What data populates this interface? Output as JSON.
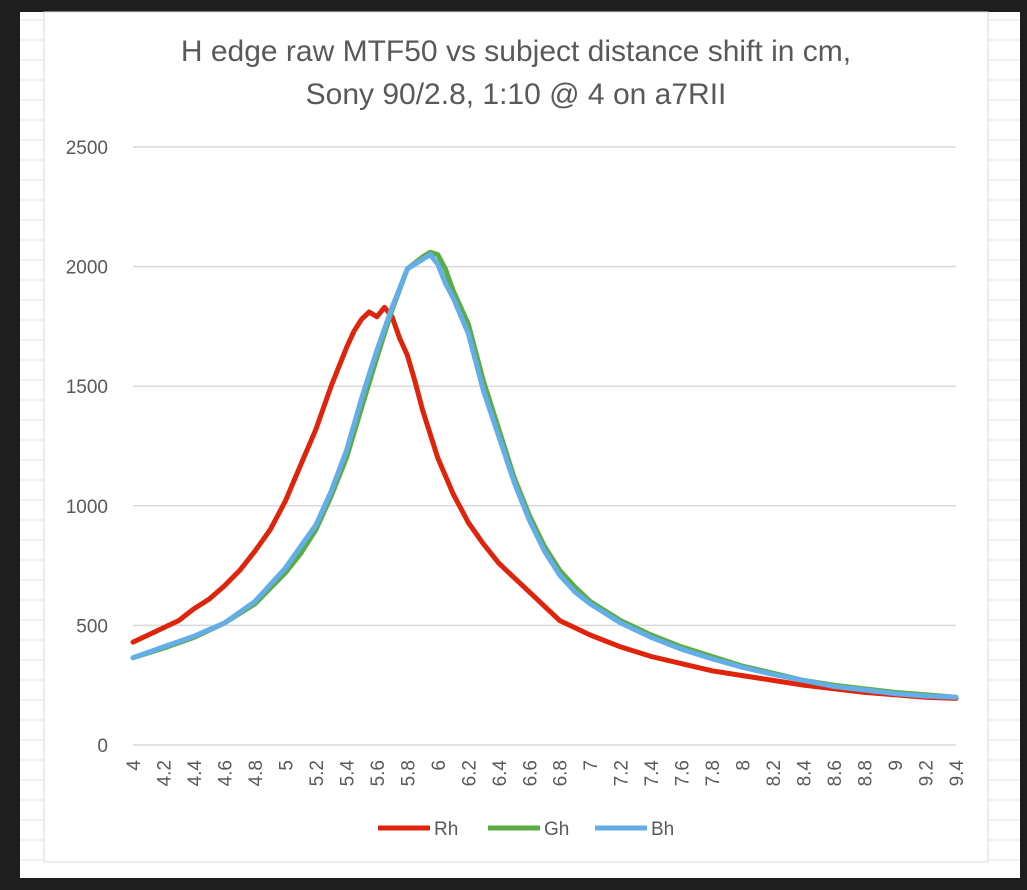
{
  "chart_data": {
    "type": "line",
    "title_line1": "H edge raw MTF50 vs subject distance shift in cm,",
    "title_line2": "Sony 90/2.8, 1:10 @ 4 on a7RII",
    "xlabel": "",
    "ylabel": "",
    "ylim": [
      0,
      2500
    ],
    "yticks": [
      0,
      500,
      1000,
      1500,
      2000,
      2500
    ],
    "xlim": [
      4,
      9.4
    ],
    "xticks": [
      "4",
      "4.2",
      "4.4",
      "4.6",
      "4.8",
      "5",
      "5.2",
      "5.4",
      "5.6",
      "5.8",
      "6",
      "6.2",
      "6.4",
      "6.6",
      "6.8",
      "7",
      "7.2",
      "7.4",
      "7.6",
      "7.8",
      "8",
      "8.2",
      "8.4",
      "8.6",
      "8.8",
      "9",
      "9.2",
      "9.4"
    ],
    "grid": "horizontal",
    "legend_position": "bottom",
    "series": [
      {
        "name": "Rh",
        "color": "#e0240b",
        "x": [
          4.0,
          4.1,
          4.2,
          4.3,
          4.4,
          4.5,
          4.6,
          4.7,
          4.8,
          4.9,
          5.0,
          5.1,
          5.2,
          5.3,
          5.4,
          5.45,
          5.5,
          5.55,
          5.6,
          5.65,
          5.7,
          5.75,
          5.8,
          5.85,
          5.9,
          6.0,
          6.1,
          6.2,
          6.3,
          6.4,
          6.5,
          6.6,
          6.7,
          6.8,
          6.9,
          7.0,
          7.2,
          7.4,
          7.6,
          7.8,
          8.0,
          8.2,
          8.4,
          8.6,
          8.8,
          9.0,
          9.2,
          9.4
        ],
        "y": [
          430,
          460,
          490,
          520,
          570,
          610,
          665,
          730,
          810,
          900,
          1020,
          1170,
          1320,
          1500,
          1660,
          1730,
          1780,
          1810,
          1790,
          1830,
          1790,
          1700,
          1630,
          1520,
          1400,
          1200,
          1050,
          930,
          840,
          760,
          700,
          640,
          580,
          520,
          490,
          460,
          410,
          370,
          340,
          310,
          290,
          270,
          250,
          235,
          220,
          210,
          200,
          195
        ]
      },
      {
        "name": "Gh",
        "color": "#5aac44",
        "x": [
          4.0,
          4.2,
          4.4,
          4.6,
          4.8,
          5.0,
          5.1,
          5.2,
          5.3,
          5.4,
          5.5,
          5.6,
          5.7,
          5.8,
          5.9,
          5.95,
          6.0,
          6.05,
          6.1,
          6.2,
          6.3,
          6.4,
          6.5,
          6.6,
          6.7,
          6.8,
          6.9,
          7.0,
          7.2,
          7.4,
          7.6,
          7.8,
          8.0,
          8.2,
          8.4,
          8.6,
          8.8,
          9.0,
          9.2,
          9.4
        ],
        "y": [
          365,
          405,
          450,
          510,
          590,
          720,
          800,
          900,
          1040,
          1200,
          1410,
          1620,
          1820,
          1990,
          2040,
          2060,
          2050,
          1990,
          1900,
          1760,
          1520,
          1320,
          1120,
          960,
          830,
          730,
          660,
          600,
          520,
          460,
          410,
          370,
          330,
          300,
          270,
          250,
          235,
          220,
          210,
          200
        ]
      },
      {
        "name": "Bh",
        "color": "#64aee8",
        "x": [
          4.0,
          4.2,
          4.4,
          4.6,
          4.8,
          5.0,
          5.1,
          5.2,
          5.3,
          5.4,
          5.5,
          5.6,
          5.7,
          5.8,
          5.9,
          5.95,
          6.0,
          6.05,
          6.1,
          6.2,
          6.3,
          6.4,
          6.5,
          6.6,
          6.7,
          6.8,
          6.9,
          7.0,
          7.2,
          7.4,
          7.6,
          7.8,
          8.0,
          8.2,
          8.4,
          8.6,
          8.8,
          9.0,
          9.2,
          9.4
        ],
        "y": [
          365,
          410,
          455,
          510,
          600,
          740,
          830,
          920,
          1060,
          1230,
          1450,
          1650,
          1830,
          1990,
          2030,
          2050,
          2010,
          1930,
          1870,
          1720,
          1480,
          1290,
          1100,
          940,
          810,
          710,
          640,
          590,
          510,
          450,
          400,
          360,
          325,
          295,
          270,
          245,
          230,
          215,
          205,
          200
        ]
      }
    ]
  }
}
